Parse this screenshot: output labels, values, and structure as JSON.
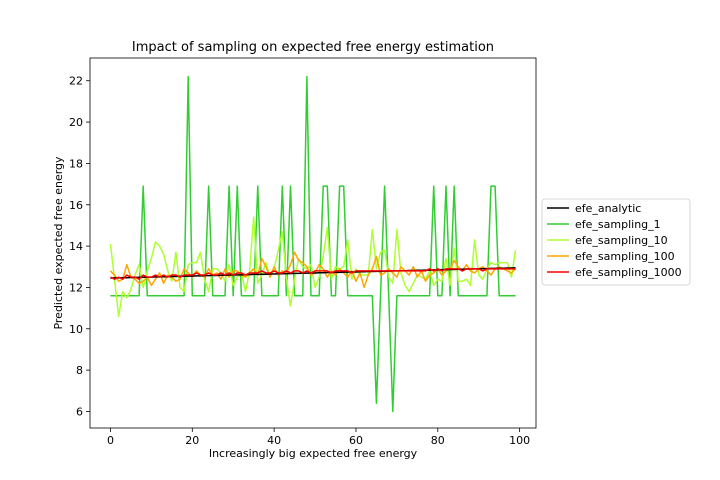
{
  "chart_data": {
    "type": "line",
    "title": "Impact of sampling on expected free energy estimation",
    "xlabel": "Increasingly big expected free energy",
    "ylabel": "Predicted expected free energy",
    "xlim": [
      -5,
      104
    ],
    "ylim": [
      5.2,
      23.1
    ],
    "xticks": [
      0,
      20,
      40,
      60,
      80,
      100
    ],
    "yticks": [
      6,
      8,
      10,
      12,
      14,
      16,
      18,
      20,
      22
    ],
    "grid": false,
    "legend_position": "right-outside",
    "x": [
      0,
      1,
      2,
      3,
      4,
      5,
      6,
      7,
      8,
      9,
      10,
      11,
      12,
      13,
      14,
      15,
      16,
      17,
      18,
      19,
      20,
      21,
      22,
      23,
      24,
      25,
      26,
      27,
      28,
      29,
      30,
      31,
      32,
      33,
      34,
      35,
      36,
      37,
      38,
      39,
      40,
      41,
      42,
      43,
      44,
      45,
      46,
      47,
      48,
      49,
      50,
      51,
      52,
      53,
      54,
      55,
      56,
      57,
      58,
      59,
      60,
      61,
      62,
      63,
      64,
      65,
      66,
      67,
      68,
      69,
      70,
      71,
      72,
      73,
      74,
      75,
      76,
      77,
      78,
      79,
      80,
      81,
      82,
      83,
      84,
      85,
      86,
      87,
      88,
      89,
      90,
      91,
      92,
      93,
      94,
      95,
      96,
      97,
      98,
      99
    ],
    "series": [
      {
        "name": "efe_analytic",
        "color": "#000000",
        "values": [
          12.45,
          12.46,
          12.46,
          12.47,
          12.47,
          12.48,
          12.48,
          12.49,
          12.49,
          12.5,
          12.5,
          12.51,
          12.51,
          12.52,
          12.52,
          12.53,
          12.53,
          12.54,
          12.54,
          12.55,
          12.55,
          12.56,
          12.56,
          12.57,
          12.57,
          12.58,
          12.58,
          12.59,
          12.59,
          12.6,
          12.6,
          12.61,
          12.61,
          12.62,
          12.62,
          12.63,
          12.63,
          12.64,
          12.64,
          12.65,
          12.65,
          12.66,
          12.66,
          12.67,
          12.67,
          12.68,
          12.68,
          12.69,
          12.69,
          12.7,
          12.7,
          12.71,
          12.71,
          12.72,
          12.72,
          12.73,
          12.73,
          12.74,
          12.74,
          12.75,
          12.75,
          12.76,
          12.76,
          12.77,
          12.77,
          12.78,
          12.78,
          12.79,
          12.79,
          12.8,
          12.8,
          12.81,
          12.81,
          12.82,
          12.82,
          12.83,
          12.83,
          12.84,
          12.84,
          12.85,
          12.85,
          12.86,
          12.86,
          12.87,
          12.87,
          12.88,
          12.88,
          12.89,
          12.89,
          12.9,
          12.9,
          12.91,
          12.91,
          12.92,
          12.92,
          12.93,
          12.93,
          12.94,
          12.94,
          12.95
        ]
      },
      {
        "name": "efe_sampling_1",
        "color": "#32cd32",
        "values": [
          11.6,
          11.6,
          11.6,
          11.6,
          11.6,
          11.6,
          11.6,
          11.6,
          16.9,
          11.6,
          11.6,
          11.6,
          11.6,
          11.6,
          11.6,
          11.6,
          11.6,
          11.6,
          11.6,
          22.2,
          11.6,
          11.6,
          11.6,
          11.6,
          16.9,
          11.6,
          11.6,
          11.6,
          11.6,
          16.9,
          11.6,
          16.9,
          11.6,
          11.6,
          11.6,
          11.6,
          16.9,
          11.6,
          11.6,
          11.6,
          11.6,
          11.6,
          16.9,
          11.6,
          16.9,
          11.6,
          11.6,
          11.6,
          22.2,
          11.6,
          11.6,
          11.6,
          16.9,
          16.9,
          11.6,
          11.6,
          16.9,
          16.9,
          11.6,
          11.6,
          11.6,
          11.6,
          11.6,
          11.6,
          11.6,
          6.4,
          11.6,
          16.9,
          11.6,
          6.0,
          11.6,
          11.6,
          11.6,
          11.6,
          11.6,
          11.6,
          11.6,
          11.6,
          11.6,
          16.9,
          11.6,
          11.6,
          16.9,
          11.6,
          16.9,
          11.6,
          11.6,
          11.6,
          11.6,
          11.6,
          11.6,
          11.6,
          11.6,
          16.9,
          16.9,
          11.6,
          11.6,
          11.6,
          11.6,
          11.6
        ]
      },
      {
        "name": "efe_sampling_10",
        "color": "#adff2f",
        "values": [
          14.1,
          12.4,
          10.6,
          11.8,
          11.5,
          11.9,
          12.6,
          13.1,
          12.0,
          12.8,
          13.4,
          14.2,
          14.0,
          13.6,
          12.8,
          12.3,
          13.7,
          12.0,
          11.8,
          13.1,
          13.2,
          13.2,
          13.7,
          12.4,
          11.8,
          12.9,
          12.9,
          12.7,
          12.3,
          13.1,
          12.1,
          12.5,
          12.7,
          11.8,
          12.8,
          15.4,
          12.2,
          12.6,
          13.2,
          12.5,
          12.9,
          13.8,
          14.7,
          12.4,
          11.1,
          12.4,
          13.4,
          13.0,
          12.9,
          13.1,
          12.0,
          12.5,
          13.5,
          14.9,
          12.4,
          13.0,
          12.9,
          13.0,
          14.3,
          12.4,
          12.9,
          12.6,
          12.6,
          12.6,
          14.8,
          12.9,
          13.7,
          13.8,
          12.5,
          12.2,
          14.8,
          12.7,
          12.1,
          11.8,
          12.2,
          12.6,
          12.5,
          12.4,
          12.8,
          12.1,
          12.4,
          12.3,
          13.4,
          12.1,
          13.9,
          12.3,
          12.3,
          12.4,
          12.1,
          14.3,
          12.6,
          12.4,
          12.9,
          13.2,
          13.1,
          13.2,
          13.2,
          13.2,
          12.5,
          13.8
        ]
      },
      {
        "name": "efe_sampling_100",
        "color": "#ffa500",
        "values": [
          12.8,
          12.6,
          12.3,
          12.4,
          13.1,
          12.5,
          12.4,
          12.2,
          12.3,
          12.5,
          12.1,
          12.4,
          12.7,
          12.2,
          12.6,
          12.5,
          12.3,
          12.4,
          12.9,
          12.7,
          12.5,
          12.8,
          12.6,
          12.5,
          12.9,
          12.6,
          12.7,
          12.4,
          12.9,
          12.5,
          12.8,
          12.8,
          12.6,
          12.5,
          12.7,
          12.9,
          12.6,
          13.4,
          13.0,
          12.5,
          13.0,
          12.6,
          12.8,
          12.7,
          13.1,
          13.7,
          13.3,
          13.2,
          13.0,
          12.6,
          12.7,
          13.1,
          12.9,
          12.5,
          12.8,
          12.6,
          12.9,
          12.7,
          12.5,
          12.8,
          12.3,
          12.7,
          12.0,
          12.6,
          12.9,
          13.5,
          12.6,
          12.7,
          12.9,
          12.7,
          12.5,
          13.0,
          12.8,
          12.6,
          13.0,
          12.5,
          12.8,
          12.3,
          12.6,
          12.7,
          12.9,
          12.6,
          12.8,
          12.9,
          13.3,
          13.0,
          12.8,
          13.1,
          12.8,
          12.7,
          12.9,
          13.0,
          12.8,
          12.6,
          12.9,
          13.0,
          12.9,
          12.8,
          12.7,
          12.9
        ]
      },
      {
        "name": "efe_sampling_1000",
        "color": "#ff0000",
        "values": [
          12.5,
          12.4,
          12.5,
          12.4,
          12.6,
          12.5,
          12.5,
          12.4,
          12.6,
          12.5,
          12.5,
          12.6,
          12.5,
          12.6,
          12.5,
          12.6,
          12.6,
          12.5,
          12.6,
          12.6,
          12.6,
          12.7,
          12.6,
          12.6,
          12.7,
          12.6,
          12.6,
          12.7,
          12.6,
          12.7,
          12.6,
          12.7,
          12.7,
          12.6,
          12.7,
          12.7,
          12.7,
          12.8,
          12.7,
          12.7,
          12.8,
          12.7,
          12.7,
          12.8,
          12.7,
          12.8,
          12.8,
          12.7,
          12.8,
          12.7,
          12.8,
          12.8,
          12.8,
          12.8,
          12.7,
          12.8,
          12.8,
          12.8,
          12.8,
          12.7,
          12.8,
          12.8,
          12.8,
          12.8,
          12.8,
          12.8,
          12.8,
          12.8,
          12.8,
          12.8,
          12.8,
          12.8,
          12.8,
          12.8,
          12.8,
          12.8,
          12.8,
          12.8,
          12.9,
          12.8,
          12.9,
          12.8,
          12.9,
          12.9,
          12.9,
          12.9,
          12.8,
          12.9,
          12.9,
          12.9,
          12.9,
          12.8,
          12.9,
          12.9,
          12.9,
          12.9,
          12.9,
          12.9,
          12.9,
          12.9
        ]
      }
    ]
  }
}
